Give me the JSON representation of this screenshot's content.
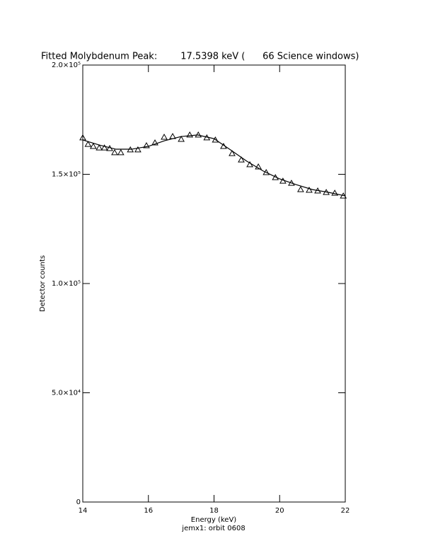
{
  "chart_data": {
    "type": "scatter-fit",
    "title": "Fitted Molybdenum Peak:        17.5398 keV (      66 Science windows)",
    "x_label": "Energy (keV)",
    "subtitle": "jemx1: orbit 0608",
    "y_label": "Detector counts",
    "xlim": [
      14,
      22
    ],
    "xticks": [
      14,
      16,
      18,
      20,
      22
    ],
    "ylim": [
      0,
      200000
    ],
    "yticks": [
      0,
      {
        "value": 50000,
        "label": "5.0×10⁴"
      },
      {
        "value": 100000,
        "label": "1.0×10⁵"
      },
      {
        "value": 150000,
        "label": "1.5×10⁵"
      },
      {
        "value": 200000,
        "label": "2.0×10⁵"
      }
    ],
    "color": "#000000",
    "series": [
      {
        "marker": "triangle",
        "x": [
          14.0,
          14.16,
          14.32,
          14.5,
          14.66,
          14.82,
          14.97,
          15.16,
          15.45,
          15.68,
          15.94,
          16.2,
          16.48,
          16.74,
          17.0,
          17.26,
          17.52,
          17.78,
          18.04,
          18.29,
          18.55,
          18.83,
          19.09,
          19.35,
          19.59,
          19.87,
          20.1,
          20.36,
          20.64,
          20.9,
          21.16,
          21.42,
          21.68,
          21.94
        ],
        "values": [
          166700,
          163700,
          162800,
          162100,
          162100,
          161800,
          159900,
          159900,
          161200,
          161200,
          163100,
          164400,
          167000,
          167300,
          166000,
          168000,
          168000,
          166700,
          165700,
          162800,
          159500,
          156600,
          154400,
          153400,
          150800,
          148500,
          146900,
          145900,
          143000,
          142700,
          142400,
          141700,
          141400,
          140100
        ]
      },
      {
        "marker": "line",
        "x": [
          14.0,
          14.5,
          15.0,
          15.5,
          16.0,
          16.5,
          17.0,
          17.5,
          18.0,
          18.5,
          19.0,
          19.5,
          20.0,
          20.5,
          21.0,
          21.5,
          22.0
        ],
        "values": [
          165700,
          163400,
          161500,
          161500,
          162800,
          165400,
          167300,
          168000,
          166300,
          161200,
          156000,
          151500,
          147900,
          145300,
          143000,
          141700,
          140100
        ]
      }
    ]
  }
}
